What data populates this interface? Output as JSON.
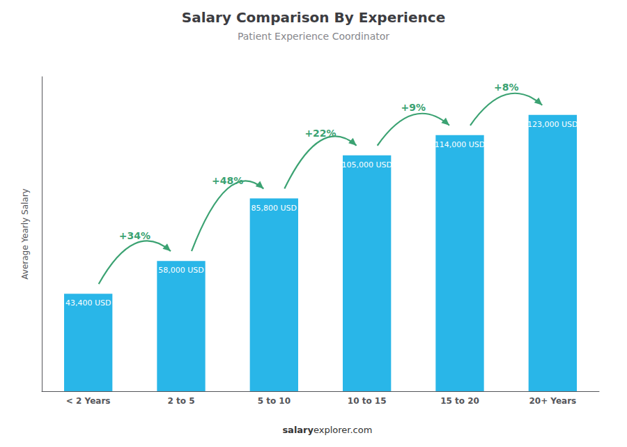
{
  "chart_data": {
    "type": "bar",
    "title": "Salary Comparison By Experience",
    "subtitle": "Patient Experience Coordinator",
    "categories": [
      "< 2 Years",
      "2 to 5",
      "5 to 10",
      "10 to 15",
      "15 to 20",
      "20+ Years"
    ],
    "values": [
      43400,
      58000,
      85800,
      105000,
      114000,
      123000
    ],
    "value_labels": [
      "43,400 USD",
      "58,000 USD",
      "85,800 USD",
      "105,000 USD",
      "114,000 USD",
      "123,000 USD"
    ],
    "data_labels": true,
    "annotations": [
      "+34%",
      "+48%",
      "+22%",
      "+9%",
      "+8%"
    ],
    "ylabel": "Average Yearly Salary",
    "footer": [
      "salary",
      "explorer.com"
    ],
    "color": "#29b6e8",
    "ylim": [
      0,
      140000
    ],
    "tick_labels": "x",
    "grid": false
  }
}
